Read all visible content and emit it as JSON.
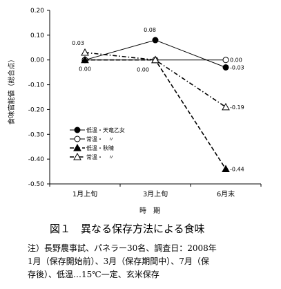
{
  "chart_data": {
    "type": "line",
    "categories": [
      "1月上旬",
      "3月上旬",
      "6月末"
    ],
    "xlabel": "時　期",
    "ylabel": "食味官能値（総合点）",
    "ylim": [
      -0.5,
      0.2
    ],
    "yticks": [
      "0.20",
      "0.10",
      "0.00",
      "-0.10",
      "-0.20",
      "-0.30",
      "-0.40",
      "-0.50"
    ],
    "grid": false,
    "legend_position": "left-middle",
    "series": [
      {
        "name": "低温・天竜乙女",
        "values": [
          0.0,
          0.08,
          -0.03
        ],
        "labels": [
          "0.00",
          "0.08",
          "-0.03"
        ],
        "marker": "filled-circle",
        "line": "solid"
      },
      {
        "name": "常温・　〃",
        "values": [
          0.0,
          0.0,
          0.0
        ],
        "labels": [
          "",
          "",
          "0.00"
        ],
        "marker": "open-circle",
        "line": "solid"
      },
      {
        "name": "低温・秋晴",
        "values": [
          0.0,
          0.0,
          -0.44
        ],
        "labels": [
          "",
          "0.00",
          "-0.44"
        ],
        "marker": "filled-triangle",
        "line": "dashed"
      },
      {
        "name": "常温・　〃",
        "values": [
          0.03,
          0.0,
          -0.19
        ],
        "labels": [
          "0.03",
          "",
          "-0.19"
        ],
        "marker": "open-triangle",
        "line": "dashdot"
      }
    ]
  },
  "caption": "図１　異なる保存方法による食味",
  "note_lines": [
    "注）長野農事試、パネラー30名、調査日：2008年",
    "1月（保存開始前）、3月（保存期間中）、7月（保",
    "存後）、低温…15℃一定、玄米保存"
  ]
}
